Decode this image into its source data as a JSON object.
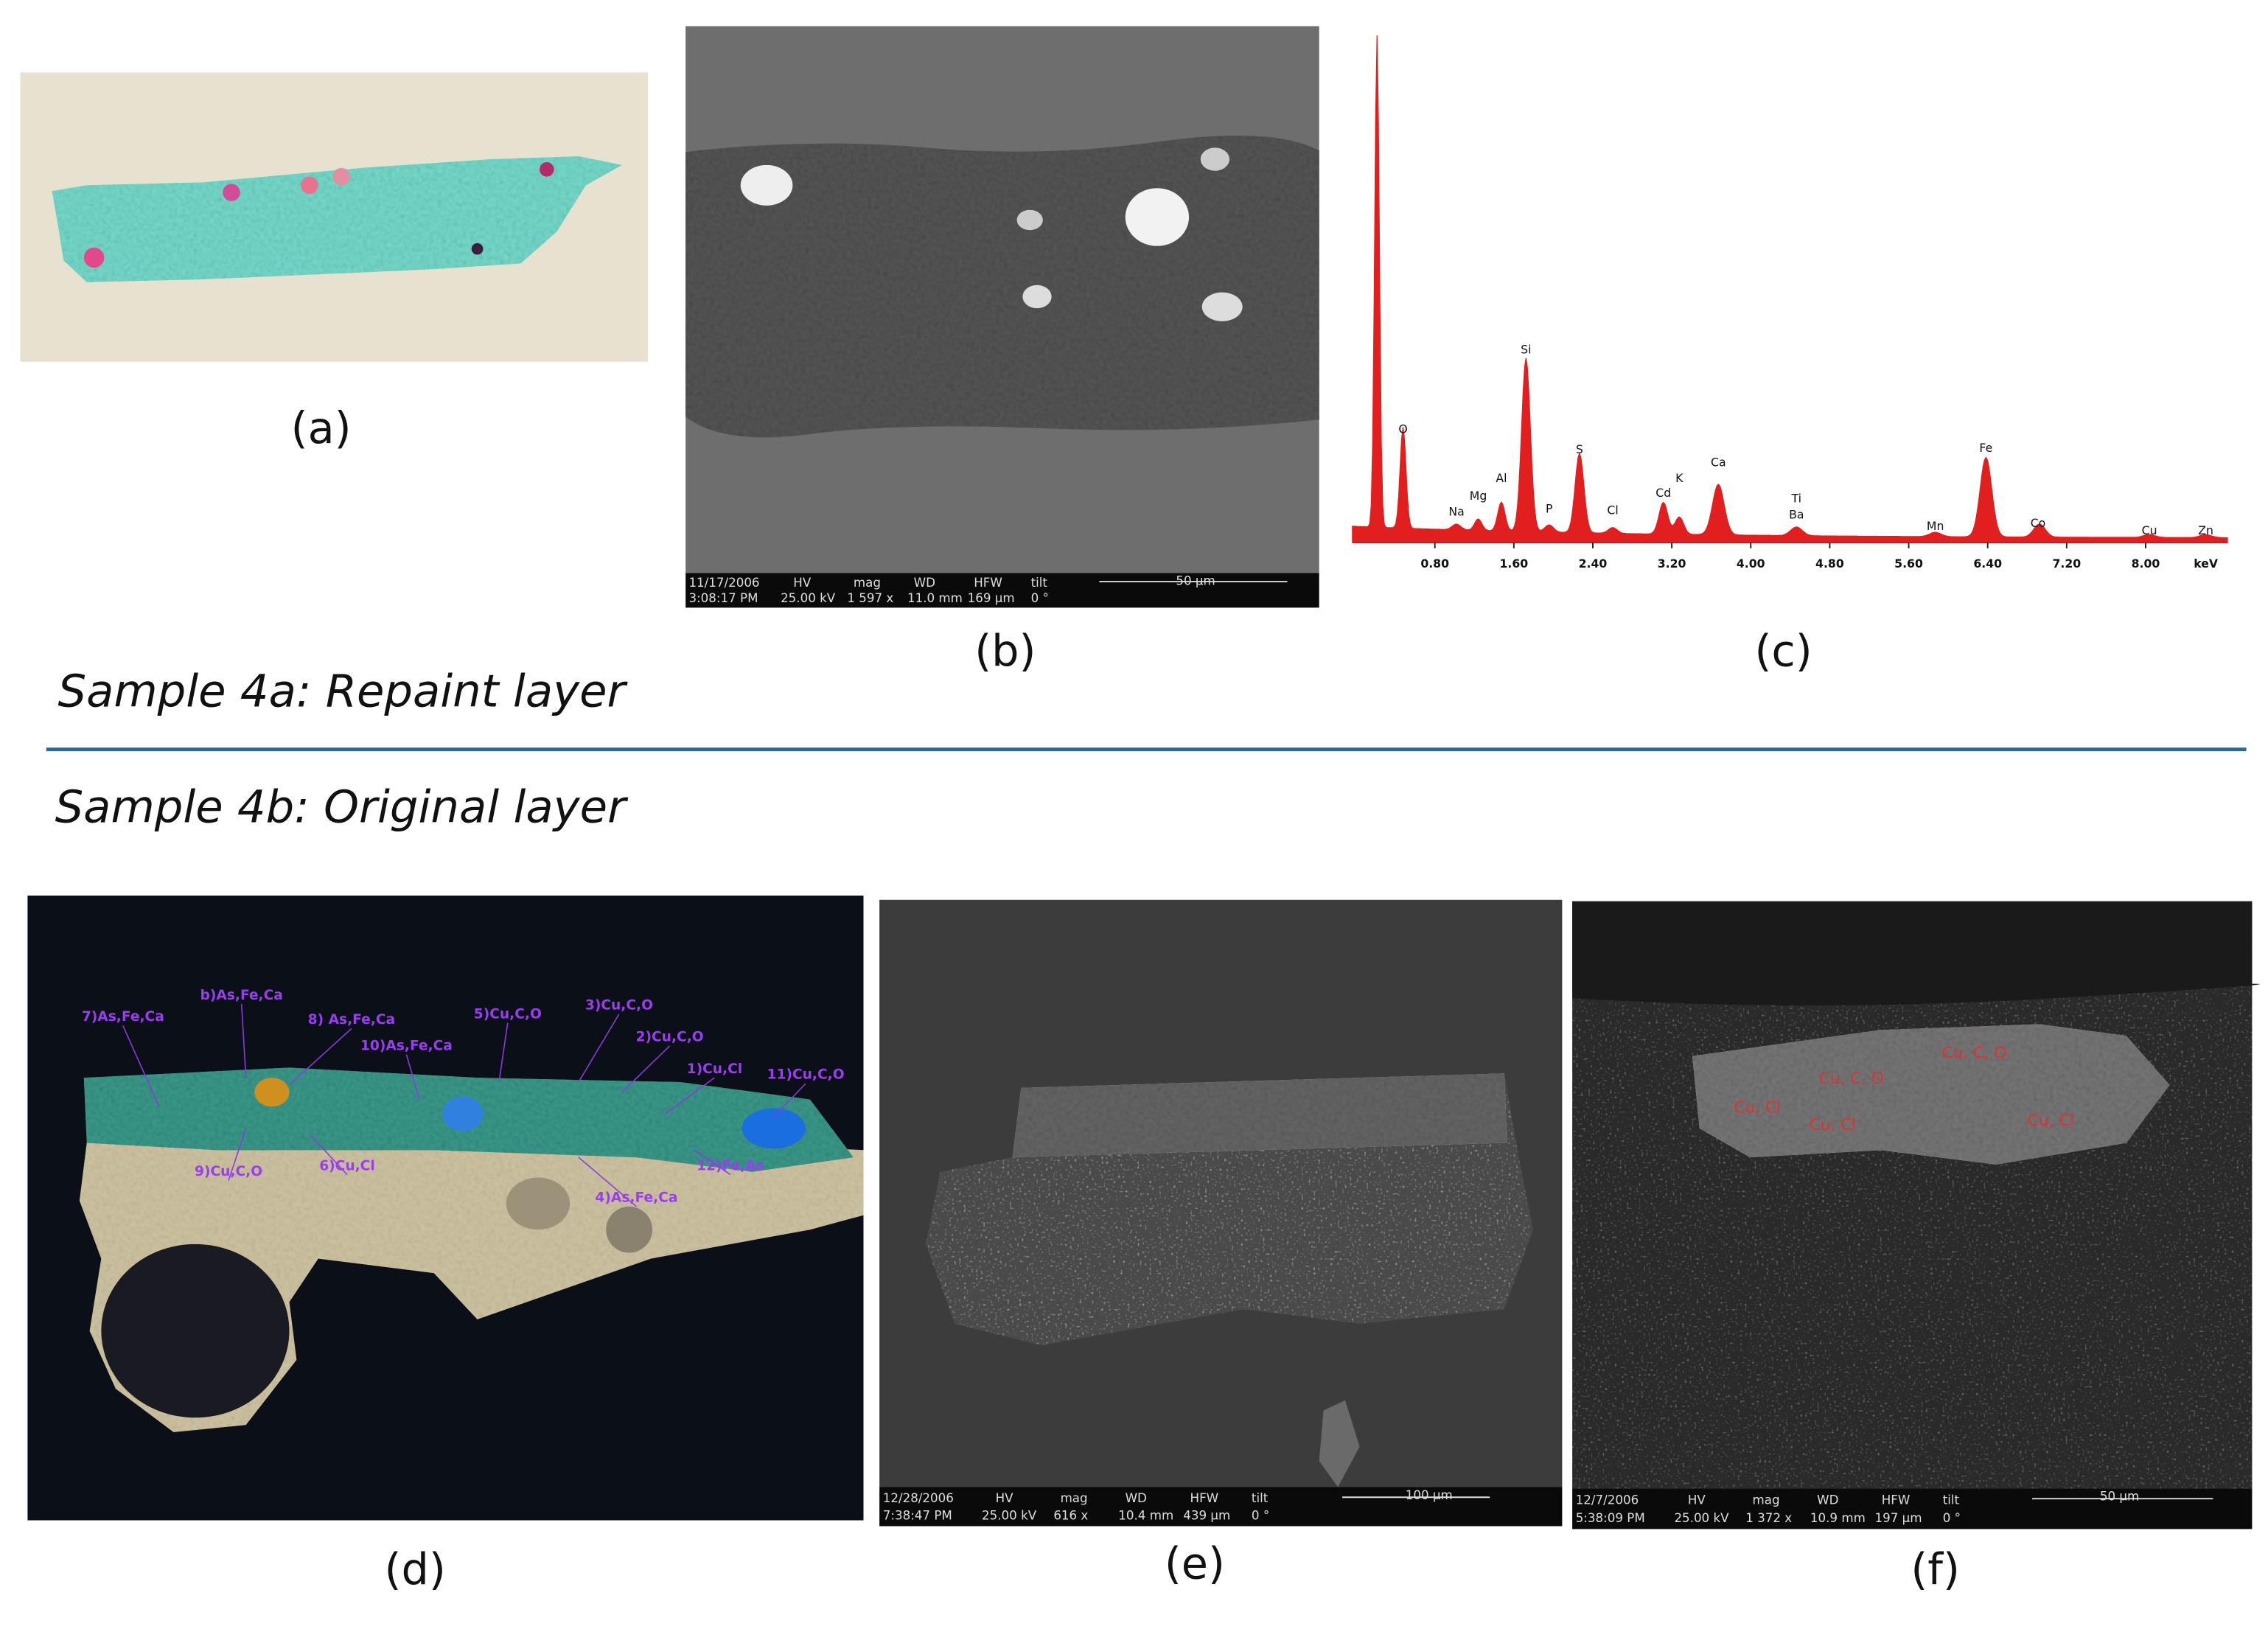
{
  "sections": [
    {
      "title": "Sample 4a: Repaint layer"
    },
    {
      "title": "Sample 4b: Original layer"
    }
  ],
  "panels": {
    "a": {
      "label": "(a)"
    },
    "b": {
      "label": "(b)",
      "databar": [
        "11/17/2006",
        "3:08:17 PM",
        "HV",
        "25.00 kV",
        "mag",
        "1 597 x",
        "WD",
        "11.0 mm",
        "HFW",
        "169 µm",
        "tilt",
        "0 °",
        "50 µm"
      ]
    },
    "c": {
      "label": "(c)",
      "peaks": [
        "O",
        "Na",
        "Mg",
        "Al",
        "Si",
        "P",
        "S",
        "Cl",
        "Cd",
        "K",
        "Ca",
        "Ti",
        "Ba",
        "Mn",
        "Fe",
        "Co",
        "Cu",
        "Zn"
      ],
      "axis_ticks": [
        "0.80",
        "1.60",
        "2.40",
        "3.20",
        "4.00",
        "4.80",
        "5.60",
        "6.40",
        "7.20",
        "8.00"
      ],
      "axis_unit": "keV"
    },
    "d": {
      "label": "(d)",
      "annotations": [
        "7)As,Fe,Ca",
        "b)As,Fe,Ca",
        "8) As,Fe,Ca",
        "10)As,Fe,Ca",
        "5)Cu,C,O",
        "3)Cu,C,O",
        "2)Cu,C,O",
        "1)Cu,Cl",
        "11)Cu,C,O",
        "9)Cu,C,O",
        "6)Cu,Cl",
        "12)Fe,As",
        "4)As,Fe,Ca"
      ]
    },
    "e": {
      "label": "(e)",
      "databar": [
        "12/28/2006",
        "7:38:47 PM",
        "HV",
        "25.00 kV",
        "mag",
        "616 x",
        "WD",
        "10.4 mm",
        "HFW",
        "439 µm",
        "tilt",
        "0 °",
        "100 µm"
      ]
    },
    "f": {
      "label": "(f)",
      "databar": [
        "12/7/2006",
        "5:38:09 PM",
        "HV",
        "25.00 kV",
        "mag",
        "1 372 x",
        "WD",
        "10.9 mm",
        "HFW",
        "197 µm",
        "tilt",
        "0 °",
        "50 µm"
      ],
      "annotations": [
        "Cu, C, O",
        "Cu, C, O",
        "Cu, Cl",
        "Cu, Cl",
        "Cu, Cl"
      ]
    }
  }
}
